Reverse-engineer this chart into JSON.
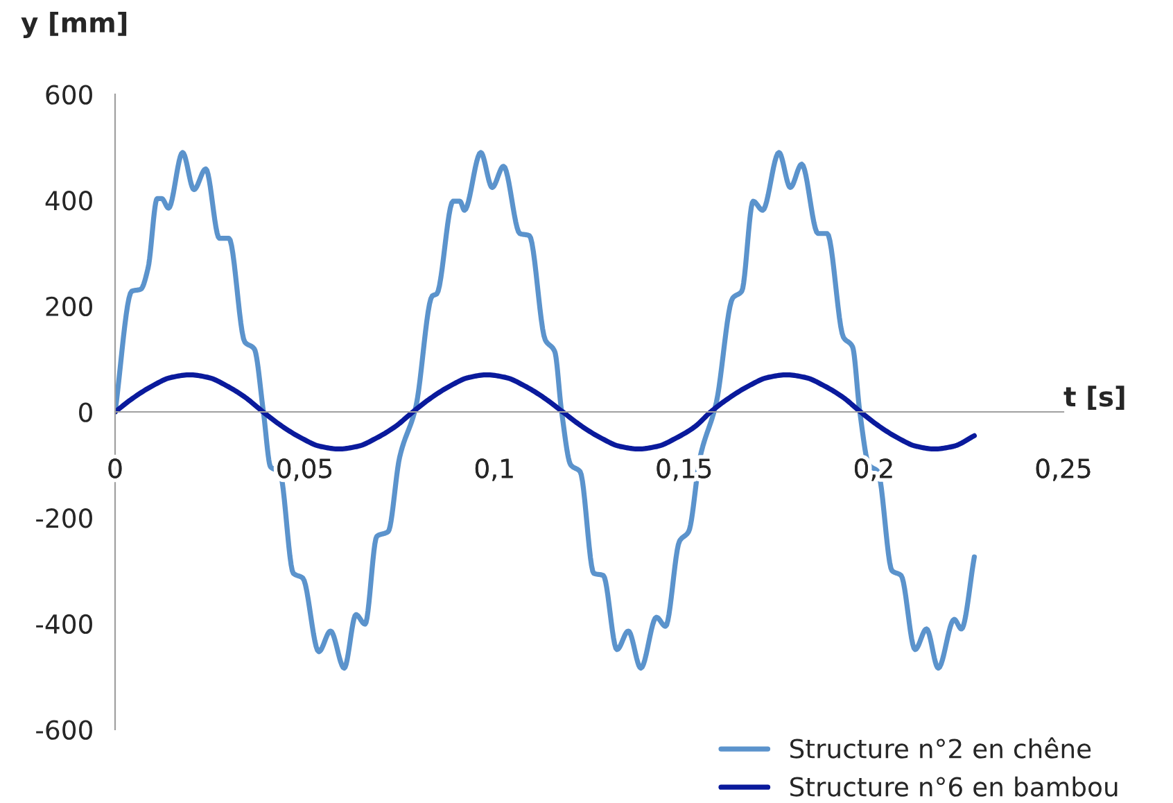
{
  "chart_data": {
    "type": "line",
    "xlabel": "t [s]",
    "ylabel": "y [mm]",
    "xlim": [
      0,
      0.25
    ],
    "ylim": [
      -600,
      600
    ],
    "xticks": [
      0,
      {
        "value": 0.05,
        "label": "0,05"
      },
      {
        "value": 0.1,
        "label": "0,1"
      },
      {
        "value": 0.15,
        "label": "0,15"
      },
      {
        "value": 0.2,
        "label": "0,2"
      },
      {
        "value": 0.25,
        "label": "0,25"
      }
    ],
    "yticks": [
      -600,
      -400,
      -200,
      0,
      200,
      400,
      600
    ],
    "grid": false,
    "legend": "bottom right",
    "line_style": "solid",
    "marker": "none",
    "series": [
      {
        "name": "Structure n°2 en chêne",
        "color": "#5b93cc",
        "x": [
          0,
          0.0044,
          0.0068,
          0.0087,
          0.0111,
          0.0123,
          0.0141,
          0.0178,
          0.0208,
          0.0239,
          0.0275,
          0.03,
          0.0342,
          0.0367,
          0.0391,
          0.041,
          0.0434,
          0.047,
          0.0495,
          0.0537,
          0.0568,
          0.0604,
          0.0635,
          0.0659,
          0.069,
          0.072,
          0.075,
          0.0793,
          0.0836,
          0.0848,
          0.0891,
          0.0909,
          0.0921,
          0.0964,
          0.0994,
          0.1024,
          0.1067,
          0.1092,
          0.1134,
          0.1159,
          0.1177,
          0.1201,
          0.1226,
          0.1262,
          0.1287,
          0.1323,
          0.1353,
          0.1386,
          0.1427,
          0.1451,
          0.1488,
          0.1512,
          0.1542,
          0.1585,
          0.1628,
          0.1652,
          0.1682,
          0.1707,
          0.175,
          0.178,
          0.181,
          0.1853,
          0.1877,
          0.192,
          0.1944,
          0.1963,
          0.1987,
          0.2011,
          0.2048,
          0.2072,
          0.2109,
          0.2139,
          0.217,
          0.2212,
          0.2231,
          0.2265
        ],
        "values": [
          0,
          228,
          232,
          272,
          403,
          403,
          385,
          490,
          420,
          459,
          328,
          328,
          132,
          119,
          0,
          -104,
          -113,
          -305,
          -314,
          -453,
          -414,
          -484,
          -383,
          -401,
          -235,
          -226,
          -86,
          10,
          219,
          223,
          398,
          398,
          381,
          490,
          424,
          464,
          337,
          333,
          136,
          114,
          1,
          -100,
          -113,
          -305,
          -309,
          -449,
          -414,
          -484,
          -388,
          -405,
          -244,
          -226,
          -86,
          18,
          215,
          228,
          398,
          381,
          490,
          424,
          468,
          337,
          337,
          141,
          123,
          1,
          -100,
          -113,
          -300,
          -309,
          -449,
          -410,
          -484,
          -392,
          -410,
          -274
        ]
      },
      {
        "name": "Structure n°6 en bambou",
        "color": "#0a1a9c",
        "x": [
          0,
          0.0049,
          0.0098,
          0.0147,
          0.0197,
          0.0246,
          0.0295,
          0.0344,
          0.039,
          0.044,
          0.049,
          0.054,
          0.059,
          0.064,
          0.069,
          0.074,
          0.0785,
          0.0834,
          0.0883,
          0.0932,
          0.098,
          0.103,
          0.108,
          0.113,
          0.118,
          0.123,
          0.128,
          0.133,
          0.138,
          0.143,
          0.148,
          0.153,
          0.157,
          0.162,
          0.167,
          0.172,
          0.177,
          0.182,
          0.187,
          0.192,
          0.1965,
          0.2014,
          0.2063,
          0.2112,
          0.216,
          0.221,
          0.2265
        ],
        "values": [
          0,
          27,
          49,
          65,
          70,
          65,
          49,
          27,
          0,
          -27,
          -49,
          -65,
          -70,
          -65,
          -49,
          -27,
          0,
          27,
          49,
          65,
          70,
          65,
          49,
          27,
          0,
          -27,
          -49,
          -65,
          -70,
          -65,
          -49,
          -27,
          0,
          27,
          49,
          65,
          70,
          65,
          49,
          27,
          0,
          -27,
          -49,
          -65,
          -70,
          -65,
          -45
        ]
      }
    ]
  }
}
